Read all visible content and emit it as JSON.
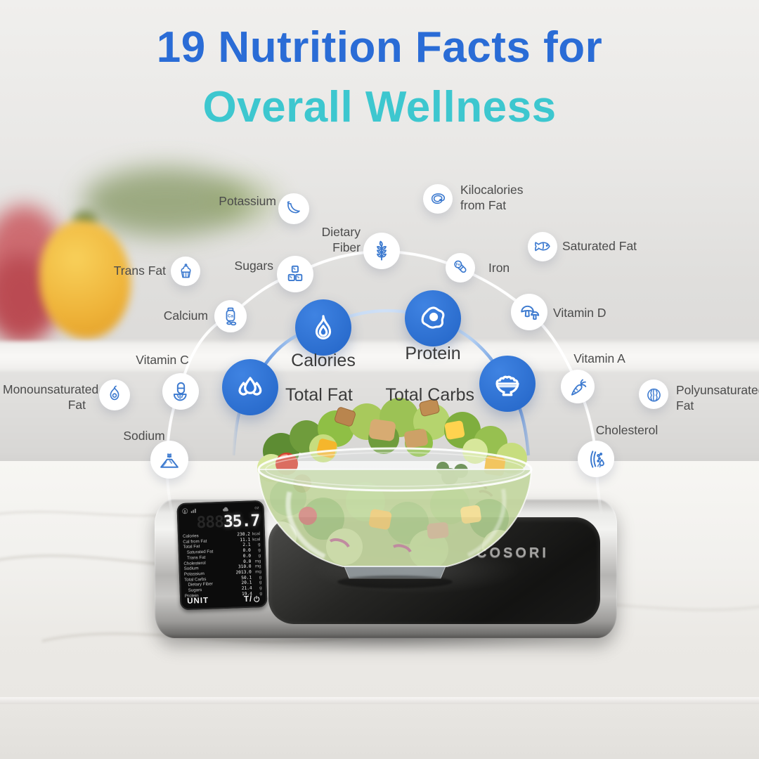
{
  "title": {
    "line1": "19 Nutrition Facts for",
    "line2": "Overall Wellness"
  },
  "palette": {
    "title_blue": "#2A6CD6",
    "title_teal": "#3DC7CF",
    "icon_blue": "#3B79CF",
    "bubble_blue": "#2E74D8",
    "label_gray": "#4B4B4B"
  },
  "nutrients": {
    "major": [
      {
        "label": "Calories",
        "icon": "flame-icon"
      },
      {
        "label": "Protein",
        "icon": "fried-egg-icon"
      },
      {
        "label": "Total Fat",
        "icon": "water-drops-icon"
      },
      {
        "label": "Total Carbs",
        "icon": "rice-bowl-icon"
      }
    ],
    "minor": [
      {
        "label": "Potassium",
        "icon": "banana-icon"
      },
      {
        "label": "Kilocalories from Fat",
        "icon": "steak-icon"
      },
      {
        "label": "Dietary Fiber",
        "icon": "wheat-icon"
      },
      {
        "label": "Saturated Fat",
        "icon": "fish-icon"
      },
      {
        "label": "Sugars",
        "icon": "sugar-cubes-icon"
      },
      {
        "label": "Iron",
        "icon": "iron-capsule-icon"
      },
      {
        "label": "Trans Fat",
        "icon": "cupcake-icon"
      },
      {
        "label": "Vitamin D",
        "icon": "mushrooms-icon"
      },
      {
        "label": "Calcium",
        "icon": "calcium-bottle-icon"
      },
      {
        "label": "Vitamin C",
        "icon": "capsule-citrus-icon"
      },
      {
        "label": "Vitamin A",
        "icon": "carrot-icon"
      },
      {
        "label": "Monounsaturated Fat",
        "icon": "avocado-icon"
      },
      {
        "label": "Polyunsaturated Fat",
        "icon": "walnut-icon"
      },
      {
        "label": "Sodium",
        "icon": "salt-pile-icon"
      },
      {
        "label": "Cholesterol",
        "icon": "artery-icon"
      }
    ]
  },
  "icon_symbols": {
    "iron": "Fe",
    "calcium": "Ca"
  },
  "scale": {
    "brand": "COSORI",
    "display": {
      "status_icons": [
        "bluetooth-icon",
        "signal-bars-icon",
        "cloud-icon"
      ],
      "unit_indicator": "oz",
      "ghost_digits": "888",
      "weight_value": "35.7",
      "rows": [
        {
          "name": "Calories",
          "value": "230.2",
          "unit": "kcal"
        },
        {
          "name": "Cal from Fat",
          "value": "11.1",
          "unit": "kcal"
        },
        {
          "name": "Total Fat",
          "value": "2.1",
          "unit": "g"
        },
        {
          "name": "Saturated Fat",
          "value": "0.0",
          "unit": "g",
          "indent": true
        },
        {
          "name": "Trans Fat",
          "value": "0.0",
          "unit": "g",
          "indent": true
        },
        {
          "name": "Cholesterol",
          "value": "0.0",
          "unit": "mg"
        },
        {
          "name": "Sodium",
          "value": "310.0",
          "unit": "mg"
        },
        {
          "name": "Potassium",
          "value": "2013.0",
          "unit": "mg"
        },
        {
          "name": "Total Carbs",
          "value": "50.1",
          "unit": "g"
        },
        {
          "name": "Dietary Fiber",
          "value": "20.1",
          "unit": "g",
          "indent": true
        },
        {
          "name": "Sugars",
          "value": "21.4",
          "unit": "g",
          "indent": true
        },
        {
          "name": "Protein",
          "value": "19.4",
          "unit": "g"
        }
      ],
      "buttons": [
        {
          "label": "UNIT"
        },
        {
          "label": "T/",
          "icon": "power-icon"
        }
      ]
    }
  }
}
